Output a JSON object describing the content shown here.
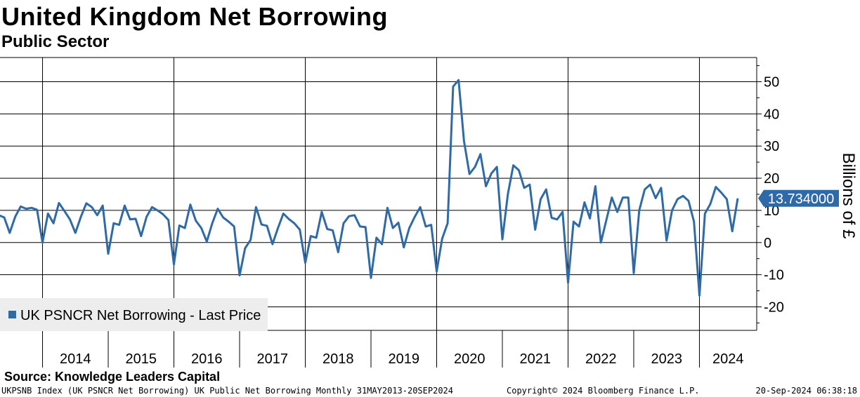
{
  "header": {
    "title": "United Kingdom Net Borrowing",
    "subtitle": "Public Sector"
  },
  "footer": {
    "source": "Source: Knowledge Leaders Capital",
    "index_info": "UKPSNB Index (UK PSNCR Net Borrowing) UK Public Net Borrowing  Monthly 31MAY2013-20SEP2024",
    "copyright": "Copyright© 2024 Bloomberg Finance L.P.",
    "timestamp": "20-Sep-2024 06:38:18"
  },
  "colors": {
    "series": "#2e6aa8",
    "grid": "#000000",
    "legend_bg": "#ededed"
  },
  "chart_data": {
    "type": "line",
    "title": "United Kingdom Net Borrowing",
    "subtitle": "Public Sector",
    "ylabel": "Billions of £",
    "ylim": [
      -28,
      57
    ],
    "y_ticks": [
      50,
      40,
      30,
      20,
      10,
      0,
      -10,
      -20
    ],
    "x_ticks": [
      "2014",
      "2015",
      "2016",
      "2017",
      "2018",
      "2019",
      "2020",
      "2021",
      "2022",
      "2023",
      "2024"
    ],
    "grid": true,
    "legend_position": "bottom-left",
    "last_value_label": "13.734000",
    "x_start": "2013-05",
    "x_end": "2024-09",
    "series": [
      {
        "name": "UK PSNCR Net Borrowing - Last Price",
        "x": [
          "2013-05",
          "2013-06",
          "2013-07",
          "2013-08",
          "2013-09",
          "2013-10",
          "2013-11",
          "2013-12",
          "2014-01",
          "2014-02",
          "2014-03",
          "2014-04",
          "2014-05",
          "2014-06",
          "2014-07",
          "2014-08",
          "2014-09",
          "2014-10",
          "2014-11",
          "2014-12",
          "2015-01",
          "2015-02",
          "2015-03",
          "2015-04",
          "2015-05",
          "2015-06",
          "2015-07",
          "2015-08",
          "2015-09",
          "2015-10",
          "2015-11",
          "2015-12",
          "2016-01",
          "2016-02",
          "2016-03",
          "2016-04",
          "2016-05",
          "2016-06",
          "2016-07",
          "2016-08",
          "2016-09",
          "2016-10",
          "2016-11",
          "2016-12",
          "2017-01",
          "2017-02",
          "2017-03",
          "2017-04",
          "2017-05",
          "2017-06",
          "2017-07",
          "2017-08",
          "2017-09",
          "2017-10",
          "2017-11",
          "2017-12",
          "2018-01",
          "2018-02",
          "2018-03",
          "2018-04",
          "2018-05",
          "2018-06",
          "2018-07",
          "2018-08",
          "2018-09",
          "2018-10",
          "2018-11",
          "2018-12",
          "2019-01",
          "2019-02",
          "2019-03",
          "2019-04",
          "2019-05",
          "2019-06",
          "2019-07",
          "2019-08",
          "2019-09",
          "2019-10",
          "2019-11",
          "2019-12",
          "2020-01",
          "2020-02",
          "2020-03",
          "2020-04",
          "2020-05",
          "2020-06",
          "2020-07",
          "2020-08",
          "2020-09",
          "2020-10",
          "2020-11",
          "2020-12",
          "2021-01",
          "2021-02",
          "2021-03",
          "2021-04",
          "2021-05",
          "2021-06",
          "2021-07",
          "2021-08",
          "2021-09",
          "2021-10",
          "2021-11",
          "2021-12",
          "2022-01",
          "2022-02",
          "2022-03",
          "2022-04",
          "2022-05",
          "2022-06",
          "2022-07",
          "2022-08",
          "2022-09",
          "2022-10",
          "2022-11",
          "2022-12",
          "2023-01",
          "2023-02",
          "2023-03",
          "2023-04",
          "2023-05",
          "2023-06",
          "2023-07",
          "2023-08",
          "2023-09",
          "2023-10",
          "2023-11",
          "2023-12",
          "2024-01",
          "2024-02",
          "2024-03",
          "2024-04",
          "2024-05",
          "2024-06",
          "2024-07",
          "2024-08"
        ],
        "values": [
          8.5,
          7.8,
          3,
          8,
          11.2,
          10.5,
          10.8,
          10.2,
          0,
          9,
          6,
          12.3,
          9.8,
          7.2,
          3,
          8,
          12.2,
          11,
          8.5,
          11.5,
          -3.5,
          6,
          5.5,
          11.5,
          7.2,
          7.4,
          2,
          8,
          11,
          10,
          8.8,
          7,
          -6.8,
          5.3,
          4.5,
          11.8,
          6.8,
          4.5,
          0.3,
          6,
          10.5,
          7.8,
          6.5,
          5,
          -10.2,
          -1.8,
          0.8,
          11,
          5.6,
          5.2,
          -0.5,
          4.5,
          9,
          7.3,
          6,
          4,
          -6.3,
          2,
          1.5,
          9.5,
          4.2,
          3.8,
          -3,
          6,
          8.2,
          8.5,
          5,
          4.8,
          -11,
          1.5,
          -0.5,
          10.8,
          4.5,
          6.2,
          -1.5,
          4.5,
          8,
          11,
          5,
          5.5,
          -9,
          1.2,
          6,
          48.5,
          50.5,
          31.5,
          21.3,
          23.5,
          27.5,
          17.5,
          21.5,
          23.5,
          1,
          15,
          24,
          22.5,
          17,
          18,
          4,
          13.5,
          16.5,
          7.7,
          7.2,
          9.5,
          -12.5,
          6.5,
          5,
          12.5,
          7.5,
          17.5,
          0,
          7,
          14,
          9.5,
          14,
          14,
          -9.5,
          10,
          16.5,
          18,
          13.8,
          17,
          0.6,
          10,
          13.5,
          14.5,
          13,
          6.5,
          -16.5,
          9,
          12,
          17.3,
          15.5,
          13.5,
          3.5,
          13.734
        ]
      }
    ]
  }
}
